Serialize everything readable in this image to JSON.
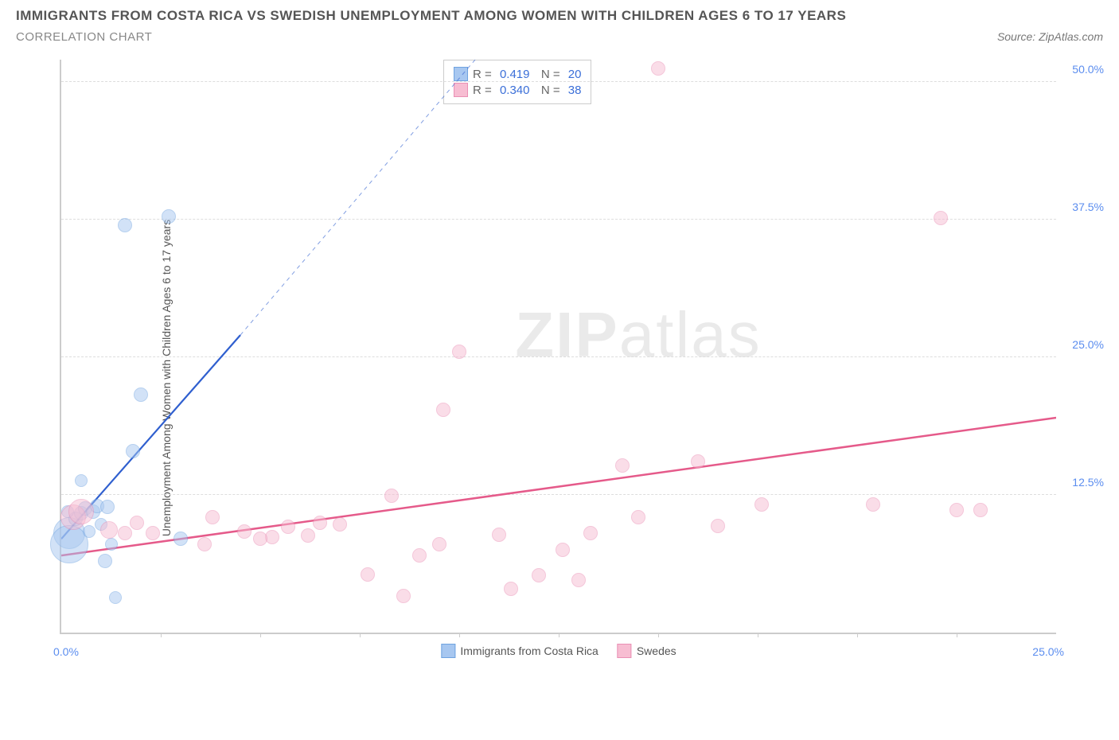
{
  "title": "IMMIGRANTS FROM COSTA RICA VS SWEDISH UNEMPLOYMENT AMONG WOMEN WITH CHILDREN AGES 6 TO 17 YEARS",
  "subtitle": "CORRELATION CHART",
  "source": "Source: ZipAtlas.com",
  "y_axis_label": "Unemployment Among Women with Children Ages 6 to 17 years",
  "watermark_bold": "ZIP",
  "watermark_light": "atlas",
  "chart": {
    "type": "scatter",
    "xlim": [
      0,
      25
    ],
    "ylim": [
      0,
      52
    ],
    "x_ticks": [
      0,
      25
    ],
    "x_tick_labels": [
      "0.0%",
      "25.0%"
    ],
    "y_ticks": [
      12.5,
      25,
      37.5,
      50
    ],
    "y_tick_labels": [
      "12.5%",
      "25.0%",
      "37.5%",
      "50.0%"
    ],
    "x_minor_ticks": [
      2.5,
      5,
      7.5,
      10,
      12.5,
      15,
      17.5,
      20,
      22.5
    ],
    "background_color": "#ffffff",
    "grid_color": "#dddddd",
    "axis_color": "#cccccc",
    "label_color": "#5b8def",
    "series": [
      {
        "name": "Immigrants from Costa Rica",
        "fill": "#a7c7f0",
        "stroke": "#6fa3e0",
        "fill_opacity": 0.5,
        "r_value": "0.419",
        "n_value": "20",
        "trend": {
          "x1": 0,
          "y1": 8.5,
          "x2": 4.5,
          "y2": 27,
          "dash_x2": 10.4,
          "dash_y2": 52,
          "color": "#2f5fcf",
          "width": 2.2
        },
        "points": [
          {
            "x": 0.2,
            "y": 9.0,
            "r": 20
          },
          {
            "x": 0.2,
            "y": 8.0,
            "r": 24
          },
          {
            "x": 0.35,
            "y": 10.3,
            "r": 9
          },
          {
            "x": 0.5,
            "y": 10.8,
            "r": 9
          },
          {
            "x": 0.5,
            "y": 13.8,
            "r": 8
          },
          {
            "x": 0.6,
            "y": 11.3,
            "r": 9
          },
          {
            "x": 0.8,
            "y": 11.0,
            "r": 9
          },
          {
            "x": 0.7,
            "y": 9.2,
            "r": 8
          },
          {
            "x": 0.9,
            "y": 11.5,
            "r": 9
          },
          {
            "x": 1.15,
            "y": 11.4,
            "r": 9
          },
          {
            "x": 1.0,
            "y": 9.8,
            "r": 8
          },
          {
            "x": 1.1,
            "y": 6.5,
            "r": 9
          },
          {
            "x": 1.35,
            "y": 3.2,
            "r": 8
          },
          {
            "x": 1.6,
            "y": 37.0,
            "r": 9
          },
          {
            "x": 2.7,
            "y": 37.8,
            "r": 9
          },
          {
            "x": 1.8,
            "y": 16.5,
            "r": 9
          },
          {
            "x": 2.0,
            "y": 21.6,
            "r": 9
          },
          {
            "x": 3.0,
            "y": 8.5,
            "r": 9
          },
          {
            "x": 1.25,
            "y": 8.0,
            "r": 8
          },
          {
            "x": 0.15,
            "y": 11.0,
            "r": 8
          }
        ]
      },
      {
        "name": "Swedes",
        "fill": "#f7bdd2",
        "stroke": "#ea8fb4",
        "fill_opacity": 0.5,
        "r_value": "0.340",
        "n_value": "38",
        "trend": {
          "x1": 0,
          "y1": 7.0,
          "x2": 25,
          "y2": 19.5,
          "color": "#e55a8a",
          "width": 2.5
        },
        "points": [
          {
            "x": 0.3,
            "y": 10.5,
            "r": 16
          },
          {
            "x": 0.5,
            "y": 11.0,
            "r": 16
          },
          {
            "x": 1.2,
            "y": 9.3,
            "r": 11
          },
          {
            "x": 1.6,
            "y": 9.0,
            "r": 9
          },
          {
            "x": 1.9,
            "y": 10.0,
            "r": 9
          },
          {
            "x": 2.3,
            "y": 9.0,
            "r": 9
          },
          {
            "x": 3.6,
            "y": 8.0,
            "r": 9
          },
          {
            "x": 3.8,
            "y": 10.5,
            "r": 9
          },
          {
            "x": 4.6,
            "y": 9.2,
            "r": 9
          },
          {
            "x": 5.3,
            "y": 8.7,
            "r": 9
          },
          {
            "x": 5.7,
            "y": 9.6,
            "r": 9
          },
          {
            "x": 6.2,
            "y": 8.8,
            "r": 9
          },
          {
            "x": 6.5,
            "y": 10.0,
            "r": 9
          },
          {
            "x": 7.0,
            "y": 9.8,
            "r": 9
          },
          {
            "x": 7.7,
            "y": 5.3,
            "r": 9
          },
          {
            "x": 8.3,
            "y": 12.4,
            "r": 9
          },
          {
            "x": 8.6,
            "y": 3.3,
            "r": 9
          },
          {
            "x": 9.0,
            "y": 7.0,
            "r": 9
          },
          {
            "x": 9.5,
            "y": 8.0,
            "r": 9
          },
          {
            "x": 9.6,
            "y": 20.2,
            "r": 9
          },
          {
            "x": 10.0,
            "y": 25.5,
            "r": 9
          },
          {
            "x": 11.0,
            "y": 8.9,
            "r": 9
          },
          {
            "x": 11.3,
            "y": 4.0,
            "r": 9
          },
          {
            "x": 12.0,
            "y": 5.2,
            "r": 9
          },
          {
            "x": 12.6,
            "y": 7.5,
            "r": 9
          },
          {
            "x": 13.0,
            "y": 4.8,
            "r": 9
          },
          {
            "x": 13.3,
            "y": 9.0,
            "r": 9
          },
          {
            "x": 14.1,
            "y": 15.2,
            "r": 9
          },
          {
            "x": 14.5,
            "y": 10.5,
            "r": 9
          },
          {
            "x": 15.0,
            "y": 51.2,
            "r": 9
          },
          {
            "x": 16.0,
            "y": 15.5,
            "r": 9
          },
          {
            "x": 16.5,
            "y": 9.7,
            "r": 9
          },
          {
            "x": 17.6,
            "y": 11.6,
            "r": 9
          },
          {
            "x": 20.4,
            "y": 11.6,
            "r": 9
          },
          {
            "x": 22.1,
            "y": 37.6,
            "r": 9
          },
          {
            "x": 22.5,
            "y": 11.1,
            "r": 9
          },
          {
            "x": 23.1,
            "y": 11.1,
            "r": 9
          },
          {
            "x": 5.0,
            "y": 8.5,
            "r": 9
          }
        ]
      }
    ]
  },
  "bottom_legend": [
    {
      "label": "Immigrants from Costa Rica",
      "fill": "#a7c7f0",
      "stroke": "#6fa3e0"
    },
    {
      "label": "Swedes",
      "fill": "#f7bdd2",
      "stroke": "#ea8fb4"
    }
  ]
}
